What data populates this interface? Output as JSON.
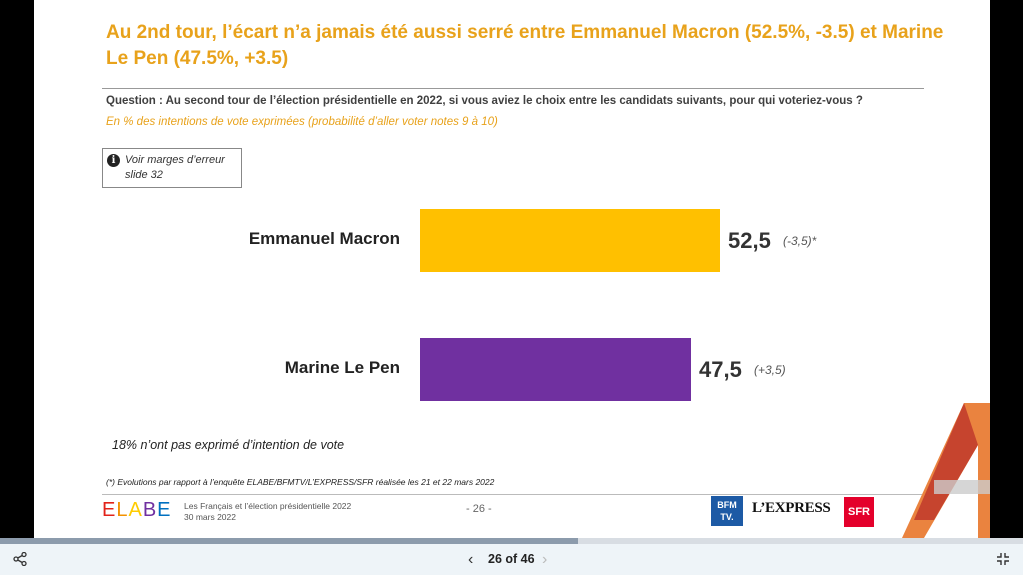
{
  "slide": {
    "title": "Au 2nd tour, l’écart n’a jamais été aussi serré entre Emmanuel Macron (52.5%, -3.5) et Marine Le Pen (47.5%, +3.5)",
    "question": "Question : Au second tour de l’élection présidentielle en 2022, si vous aviez le choix entre les candidats suivants, pour qui voteriez-vous ?",
    "subquestion": "En % des intentions de vote exprimées (probabilité d’aller voter notes 9 à 10)",
    "note_line1": "Voir marges d’erreur",
    "note_line2": "slide 32",
    "not_expressed": "18% n’ont pas exprimé d’intention de vote",
    "footnote": "(*) Evolutions par rapport à l’enquête ELABE/BFMTV/L’EXPRESS/SFR réalisée les 21 et 22 mars 2022",
    "footer_line1": "Les Français et l’élection présidentielle 2022",
    "footer_line2": "30 mars 2022",
    "page_number": "- 26 -",
    "brand": [
      "E",
      "L",
      "A",
      "B",
      "E"
    ],
    "brand_colors": [
      "#e2231a",
      "#f39200",
      "#ffcc00",
      "#7030a0",
      "#0070c0"
    ],
    "bfm_line1": "BFM",
    "bfm_line2": "TV.",
    "express": "L’EXPRESS",
    "sfr": "SFR"
  },
  "chart_data": {
    "type": "bar",
    "orientation": "horizontal",
    "categories": [
      "Emmanuel Macron",
      "Marine Le Pen"
    ],
    "values": [
      52.5,
      47.5
    ],
    "value_labels": [
      "52,5",
      "47,5"
    ],
    "evolutions": [
      "(-3,5)*",
      "(+3,5)"
    ],
    "colors": [
      "#FFC000",
      "#7030A0"
    ],
    "xlim": [
      0,
      100
    ]
  },
  "viewer": {
    "pager": "26 of 46",
    "progress": 0.565,
    "icons": [
      "share-icon",
      "chevron-left-icon",
      "chevron-right-icon",
      "fullscreen-exit-icon"
    ]
  }
}
